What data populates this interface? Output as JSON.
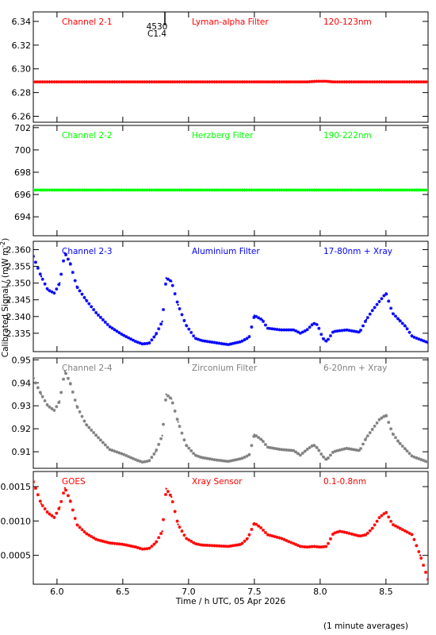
{
  "footer_note": "(1 minute averages)",
  "chart_data": {
    "type": "scatter",
    "xlabel": "Time / h UTC, 05 Apr 2026",
    "ylabel": "Calibrated Signal / (mW m",
    "ylabel_sup": "-2",
    "ylabel_end": ")",
    "xlim": [
      5.82,
      8.82
    ],
    "xticks": [
      "6.0",
      "6.5",
      "7.0",
      "7.5",
      "8.0",
      "8.5"
    ],
    "xtick_values": [
      6.0,
      6.5,
      7.0,
      7.5,
      8.0,
      8.5
    ],
    "flare_marker": {
      "x": 6.83,
      "line1": "4530",
      "line2": "C1.4"
    },
    "panels": [
      {
        "channel": "Channel 2-1",
        "filter": "Lyman-alpha Filter",
        "band": "120-123nm",
        "color": "#ff0000",
        "ylim": [
          6.255,
          6.348
        ],
        "yticks": [
          "6.26",
          "6.28",
          "6.30",
          "6.32",
          "6.34"
        ],
        "ytick_values": [
          6.26,
          6.28,
          6.3,
          6.32,
          6.34
        ],
        "series": {
          "x": [
            5.82,
            6.0,
            6.5,
            7.0,
            7.5,
            7.9,
            7.97,
            8.05,
            8.1,
            8.5,
            8.82
          ],
          "y": [
            6.289,
            6.289,
            6.289,
            6.289,
            6.289,
            6.289,
            6.2895,
            6.2895,
            6.289,
            6.289,
            6.289
          ]
        }
      },
      {
        "channel": "Channel 2-2",
        "filter": "Herzberg Filter",
        "band": "190-222nm",
        "color": "#00ff00",
        "ylim": [
          692.3,
          702.2
        ],
        "yticks": [
          "694",
          "696",
          "698",
          "700",
          "702"
        ],
        "ytick_values": [
          694,
          696,
          698,
          700,
          702
        ],
        "series": {
          "x": [
            5.82,
            6.5,
            7.0,
            7.5,
            8.0,
            8.5,
            8.82
          ],
          "y": [
            696.4,
            696.4,
            696.4,
            696.4,
            696.4,
            696.4,
            696.4
          ]
        }
      },
      {
        "channel": "Channel 2-3",
        "filter": "Aluminium Filter",
        "band": "17-80nm + Xray",
        "color": "#0000ff",
        "ylim": [
          2.3295,
          2.3625
        ],
        "yticks": [
          "2.335",
          "2.340",
          "2.345",
          "2.350",
          "2.355",
          "2.360"
        ],
        "ytick_values": [
          2.335,
          2.34,
          2.345,
          2.35,
          2.355,
          2.36
        ],
        "series": {
          "x": [
            5.82,
            5.88,
            5.93,
            5.98,
            6.02,
            6.06,
            6.1,
            6.15,
            6.22,
            6.3,
            6.4,
            6.5,
            6.6,
            6.65,
            6.7,
            6.75,
            6.8,
            6.83,
            6.87,
            6.92,
            6.98,
            7.05,
            7.1,
            7.2,
            7.3,
            7.4,
            7.46,
            7.5,
            7.56,
            7.6,
            7.7,
            7.8,
            7.85,
            7.9,
            7.95,
            7.98,
            8.02,
            8.05,
            8.1,
            8.2,
            8.3,
            8.35,
            8.4,
            8.45,
            8.5,
            8.55,
            8.6,
            8.65,
            8.7,
            8.82
          ],
          "y": [
            2.358,
            2.352,
            2.348,
            2.347,
            2.35,
            2.359,
            2.356,
            2.349,
            2.345,
            2.341,
            2.337,
            2.3345,
            2.3325,
            2.3318,
            2.332,
            2.3345,
            2.3385,
            2.3515,
            2.3505,
            2.3435,
            2.3375,
            2.3335,
            2.3328,
            2.3322,
            2.3316,
            2.3325,
            2.3338,
            2.3403,
            2.339,
            2.3365,
            2.336,
            2.336,
            2.335,
            2.336,
            2.338,
            2.3375,
            2.3335,
            2.3325,
            2.3355,
            2.336,
            2.3353,
            2.339,
            2.342,
            2.3445,
            2.347,
            2.341,
            2.339,
            2.337,
            2.334,
            2.3322
          ]
        }
      },
      {
        "channel": "Channel 2-4",
        "filter": "Zirconium Filter",
        "band": "6-20nm + Xray",
        "color": "#808080",
        "ylim": [
          0.9028,
          0.9508
        ],
        "yticks": [
          "0.91",
          "0.92",
          "0.93",
          "0.94",
          "0.95"
        ],
        "ytick_values": [
          0.91,
          0.92,
          0.93,
          0.94,
          0.95
        ],
        "series": {
          "x": [
            5.82,
            5.88,
            5.93,
            5.98,
            6.02,
            6.06,
            6.1,
            6.15,
            6.22,
            6.3,
            6.4,
            6.5,
            6.6,
            6.65,
            6.7,
            6.75,
            6.8,
            6.83,
            6.87,
            6.92,
            6.98,
            7.05,
            7.1,
            7.2,
            7.3,
            7.4,
            7.46,
            7.5,
            7.56,
            7.6,
            7.7,
            7.8,
            7.85,
            7.9,
            7.95,
            7.98,
            8.02,
            8.05,
            8.1,
            8.2,
            8.3,
            8.35,
            8.4,
            8.45,
            8.5,
            8.55,
            8.6,
            8.65,
            8.7,
            8.82
          ],
          "y": [
            0.942,
            0.935,
            0.93,
            0.928,
            0.932,
            0.945,
            0.94,
            0.93,
            0.922,
            0.917,
            0.911,
            0.909,
            0.9065,
            0.9055,
            0.906,
            0.91,
            0.917,
            0.935,
            0.933,
            0.923,
            0.913,
            0.9085,
            0.9075,
            0.9065,
            0.9058,
            0.907,
            0.9085,
            0.9175,
            0.915,
            0.912,
            0.911,
            0.9105,
            0.9085,
            0.911,
            0.913,
            0.9115,
            0.908,
            0.9065,
            0.91,
            0.9115,
            0.9105,
            0.916,
            0.92,
            0.924,
            0.926,
            0.918,
            0.914,
            0.911,
            0.908,
            0.9055
          ]
        }
      },
      {
        "channel": "GOES",
        "filter": "Xray Sensor",
        "band": "0.1-0.8nm",
        "color": "#ff0000",
        "ylim": [
          8e-05,
          0.00172
        ],
        "yticks": [
          "0.0005",
          "0.0010",
          "0.0015"
        ],
        "ytick_values": [
          0.0005,
          0.001,
          0.0015
        ],
        "series": {
          "x": [
            5.82,
            5.88,
            5.93,
            5.98,
            6.02,
            6.06,
            6.1,
            6.15,
            6.22,
            6.3,
            6.4,
            6.5,
            6.6,
            6.65,
            6.7,
            6.75,
            6.8,
            6.83,
            6.87,
            6.92,
            6.98,
            7.05,
            7.1,
            7.2,
            7.3,
            7.4,
            7.45,
            7.5,
            7.55,
            7.6,
            7.7,
            7.8,
            7.85,
            7.9,
            7.95,
            8.0,
            8.05,
            8.1,
            8.15,
            8.2,
            8.3,
            8.35,
            8.4,
            8.45,
            8.5,
            8.55,
            8.6,
            8.65,
            8.7,
            8.76,
            8.82
          ],
          "y": [
            0.00157,
            0.00125,
            0.00112,
            0.00105,
            0.0012,
            0.00148,
            0.0013,
            0.00095,
            0.00082,
            0.00073,
            0.00068,
            0.00066,
            0.00062,
            0.00059,
            0.0006,
            0.00068,
            0.00085,
            0.00147,
            0.00135,
            0.00095,
            0.00075,
            0.00067,
            0.00065,
            0.00064,
            0.00063,
            0.00066,
            0.00075,
            0.00097,
            0.0009,
            0.0008,
            0.00075,
            0.00067,
            0.00063,
            0.00062,
            0.00063,
            0.00062,
            0.00063,
            0.00082,
            0.00085,
            0.00083,
            0.00078,
            0.0008,
            0.0009,
            0.00105,
            0.00113,
            0.00095,
            0.0009,
            0.00085,
            0.0008,
            0.0005,
            0.00015
          ]
        }
      }
    ]
  }
}
